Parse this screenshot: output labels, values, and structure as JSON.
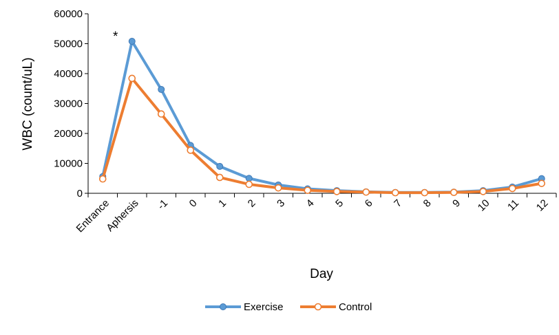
{
  "chart_data": {
    "type": "line",
    "xlabel": "Day",
    "ylabel": "WBC (count/uL)",
    "ylim": [
      0,
      60000
    ],
    "yticks": [
      0,
      10000,
      20000,
      30000,
      40000,
      50000,
      60000
    ],
    "categories": [
      "Entrance",
      "Aphersis",
      "-1",
      "0",
      "1",
      "2",
      "3",
      "4",
      "5",
      "6",
      "7",
      "8",
      "9",
      "10",
      "11",
      "12"
    ],
    "series": [
      {
        "name": "Exercise",
        "color": "#5B9BD5",
        "marker": "filled-circle",
        "values": [
          5600,
          50800,
          34700,
          16000,
          9000,
          5000,
          2800,
          1500,
          900,
          500,
          300,
          300,
          400,
          900,
          2100,
          4900
        ]
      },
      {
        "name": "Control",
        "color": "#ED7D31",
        "marker": "open-circle",
        "values": [
          4800,
          38400,
          26500,
          14400,
          5300,
          3000,
          1800,
          1000,
          600,
          400,
          200,
          200,
          300,
          600,
          1600,
          3300
        ]
      }
    ],
    "annotations": [
      {
        "text": "*",
        "category": "Aphersis"
      }
    ],
    "grid": false,
    "legend": "bottom"
  }
}
